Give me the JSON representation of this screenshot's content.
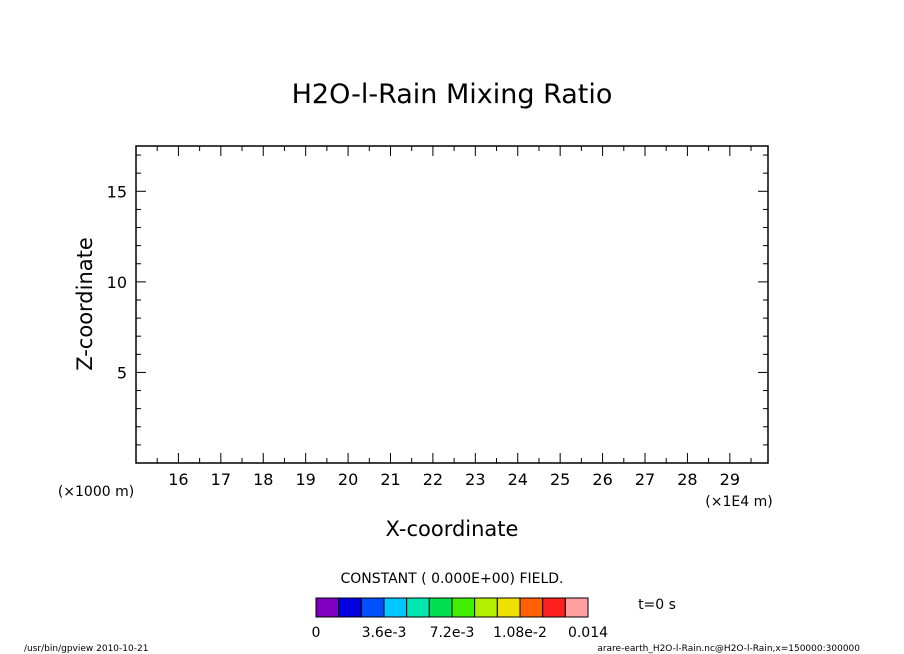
{
  "chart_data": {
    "type": "contour",
    "title": "H2O-l-Rain Mixing Ratio",
    "xlabel": "X-coordinate",
    "ylabel": "Z-coordinate",
    "x_ticks": [
      "16",
      "17",
      "18",
      "19",
      "20",
      "21",
      "22",
      "23",
      "24",
      "25",
      "26",
      "27",
      "28",
      "29"
    ],
    "x_tick_values": [
      16,
      17,
      18,
      19,
      20,
      21,
      22,
      23,
      24,
      25,
      26,
      27,
      28,
      29
    ],
    "x_range": [
      15.0,
      29.9
    ],
    "x_scale_note": "(×1E4 m)",
    "y_ticks": [
      "5",
      "10",
      "15"
    ],
    "y_tick_values": [
      5,
      10,
      15
    ],
    "y_range": [
      0.0,
      17.5
    ],
    "y_scale_note": "(×1000 m)",
    "field_message": "CONSTANT ( 0.000E+00) FIELD.",
    "time_label": "t=0 s",
    "colorbar": {
      "colors": [
        "#8000c0",
        "#0000e0",
        "#0050ff",
        "#00c8ff",
        "#00e8b0",
        "#00e050",
        "#40f000",
        "#b0f000",
        "#f0e000",
        "#ff6000",
        "#ff2020",
        "#ffa0a0"
      ],
      "labels": [
        "0",
        "3.6e-3",
        "7.2e-3",
        "1.08e-2",
        "0.014"
      ],
      "label_positions": [
        0,
        3,
        6,
        9,
        12
      ]
    }
  },
  "footer": {
    "left": "/usr/bin/gpview  2010-10-21",
    "right": "arare-earth_H2O-l-Rain.nc@H2O-l-Rain,x=150000:300000"
  }
}
